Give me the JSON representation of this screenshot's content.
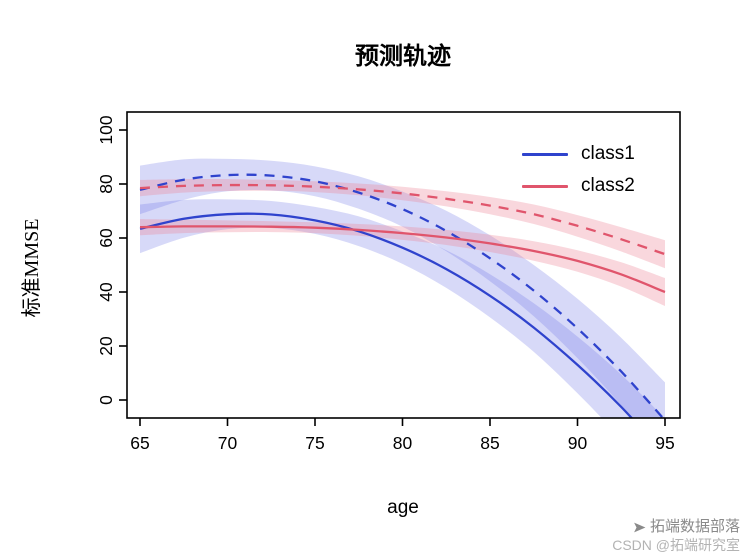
{
  "chart_data": {
    "type": "line",
    "title": "预测轨迹",
    "xlabel": "age",
    "ylabel": "标准MMSE",
    "xlim": [
      65,
      95
    ],
    "ylim": [
      0,
      100
    ],
    "xticks": [
      65,
      70,
      75,
      80,
      85,
      90,
      95
    ],
    "yticks": [
      0,
      20,
      40,
      60,
      80,
      100
    ],
    "grid": false,
    "x": [
      65,
      67.5,
      70,
      72.5,
      75,
      77.5,
      80,
      82.5,
      85,
      87.5,
      90,
      92.5,
      95
    ],
    "series": [
      {
        "name": "class1 solid trajectory",
        "group": "class1",
        "line_style": "solid",
        "color": "#2f43cd",
        "band_color": "rgba(110,120,230,0.28)",
        "values": [
          63.4,
          67.1,
          68.8,
          68.7,
          66.5,
          62.5,
          56.4,
          48.5,
          38.6,
          26.8,
          13.0,
          -2.6,
          -20.3
        ],
        "band_halfwidth": [
          9,
          7,
          5.5,
          5,
          5,
          5.5,
          6,
          7,
          8,
          9,
          10.5,
          12,
          13.5
        ]
      },
      {
        "name": "class1 dashed trajectory",
        "group": "class1",
        "line_style": "dashed",
        "color": "#2f43cd",
        "band_color": "rgba(110,120,230,0.28)",
        "values": [
          77.8,
          81.6,
          83.3,
          83.1,
          81.0,
          76.8,
          70.7,
          62.6,
          52.5,
          40.5,
          26.5,
          10.5,
          -7.5
        ],
        "band_halfwidth": [
          9,
          7.5,
          6,
          5.5,
          5.5,
          6,
          6.5,
          7.5,
          8.5,
          9.5,
          11,
          12.5,
          14
        ]
      },
      {
        "name": "class2 solid trajectory",
        "group": "class2",
        "line_style": "solid",
        "color": "#e0556c",
        "band_color": "rgba(235,130,150,0.32)",
        "values": [
          64.0,
          64.3,
          64.3,
          64.2,
          63.8,
          63.0,
          61.8,
          60.2,
          58.0,
          55.2,
          51.5,
          46.5,
          40.0
        ],
        "band_halfwidth": [
          3,
          2.5,
          2.2,
          2,
          2,
          2.2,
          2.5,
          2.8,
          3.2,
          3.6,
          4,
          4.5,
          5.2
        ]
      },
      {
        "name": "class2 dashed trajectory",
        "group": "class2",
        "line_style": "dashed",
        "color": "#e0556c",
        "band_color": "rgba(235,130,150,0.32)",
        "values": [
          78.5,
          79.3,
          79.6,
          79.5,
          79.0,
          78.0,
          76.5,
          74.5,
          72.0,
          68.8,
          64.5,
          59.5,
          54.0
        ],
        "band_halfwidth": [
          3,
          2.5,
          2.2,
          2,
          2,
          2.2,
          2.5,
          2.8,
          3.2,
          3.6,
          4,
          4.5,
          5.2
        ]
      }
    ],
    "legend": {
      "position": "top-right",
      "entries": [
        {
          "label": "class1",
          "color": "#2f43cd"
        },
        {
          "label": "class2",
          "color": "#e0556c"
        }
      ]
    }
  },
  "watermark": {
    "line1": "拓端数据部落",
    "line2": "CSDN @拓端研究室"
  }
}
